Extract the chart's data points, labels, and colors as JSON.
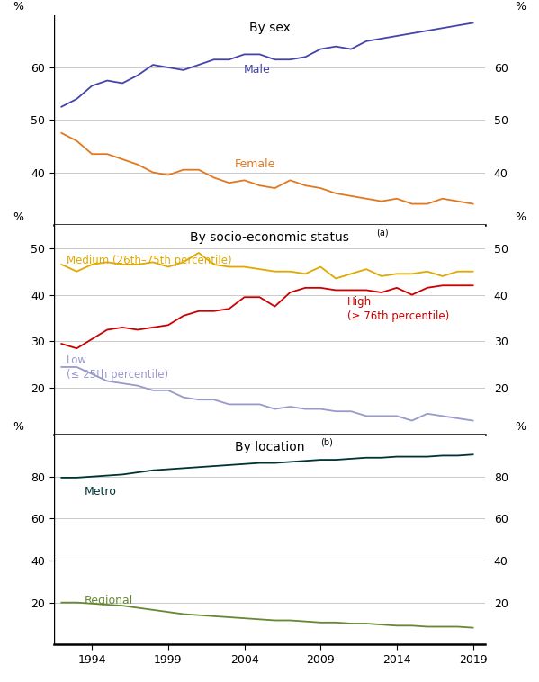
{
  "years": [
    1992,
    1993,
    1994,
    1995,
    1996,
    1997,
    1998,
    1999,
    2000,
    2001,
    2002,
    2003,
    2004,
    2005,
    2006,
    2007,
    2008,
    2009,
    2010,
    2011,
    2012,
    2013,
    2014,
    2015,
    2016,
    2017,
    2018,
    2019
  ],
  "male": [
    52.5,
    54.0,
    56.5,
    57.5,
    57.0,
    58.5,
    60.5,
    60.0,
    59.5,
    60.5,
    61.5,
    61.5,
    62.5,
    62.5,
    61.5,
    61.5,
    62.0,
    63.5,
    64.0,
    63.5,
    65.0,
    65.5,
    66.0,
    66.5,
    67.0,
    67.5,
    68.0,
    68.5
  ],
  "female": [
    47.5,
    46.0,
    43.5,
    43.5,
    42.5,
    41.5,
    40.0,
    39.5,
    40.5,
    40.5,
    39.0,
    38.0,
    38.5,
    37.5,
    37.0,
    38.5,
    37.5,
    37.0,
    36.0,
    35.5,
    35.0,
    34.5,
    35.0,
    34.0,
    34.0,
    35.0,
    34.5,
    34.0
  ],
  "medium": [
    46.5,
    45.0,
    46.5,
    47.0,
    46.5,
    46.5,
    47.0,
    46.0,
    47.0,
    49.0,
    46.5,
    46.0,
    46.0,
    45.5,
    45.0,
    45.0,
    44.5,
    46.0,
    43.5,
    44.5,
    45.5,
    44.0,
    44.5,
    44.5,
    45.0,
    44.0,
    45.0,
    45.0
  ],
  "high": [
    29.5,
    28.5,
    30.5,
    32.5,
    33.0,
    32.5,
    33.0,
    33.5,
    35.5,
    36.5,
    36.5,
    37.0,
    39.5,
    39.5,
    37.5,
    40.5,
    41.5,
    41.5,
    41.0,
    41.0,
    41.0,
    40.5,
    41.5,
    40.0,
    41.5,
    42.0,
    42.0,
    42.0
  ],
  "low": [
    24.5,
    24.5,
    23.0,
    21.5,
    21.0,
    20.5,
    19.5,
    19.5,
    18.0,
    17.5,
    17.5,
    16.5,
    16.5,
    16.5,
    15.5,
    16.0,
    15.5,
    15.5,
    15.0,
    15.0,
    14.0,
    14.0,
    14.0,
    13.0,
    14.5,
    14.0,
    13.5,
    13.0
  ],
  "metro": [
    79.5,
    79.5,
    80.0,
    80.5,
    81.0,
    82.0,
    83.0,
    83.5,
    84.0,
    84.5,
    85.0,
    85.5,
    86.0,
    86.5,
    86.5,
    87.0,
    87.5,
    88.0,
    88.0,
    88.5,
    89.0,
    89.0,
    89.5,
    89.5,
    89.5,
    90.0,
    90.0,
    90.5
  ],
  "regional": [
    20.0,
    20.0,
    19.5,
    19.0,
    18.5,
    17.5,
    16.5,
    15.5,
    14.5,
    14.0,
    13.5,
    13.0,
    12.5,
    12.0,
    11.5,
    11.5,
    11.0,
    10.5,
    10.5,
    10.0,
    10.0,
    9.5,
    9.0,
    9.0,
    8.5,
    8.5,
    8.5,
    8.0
  ],
  "male_color": "#4444aa",
  "female_color": "#e07820",
  "medium_color": "#e0a800",
  "high_color": "#cc0000",
  "low_color": "#9999cc",
  "metro_color": "#003333",
  "regional_color": "#668833",
  "xticks": [
    1994,
    1999,
    2004,
    2009,
    2014,
    2019
  ],
  "xlim": [
    1991.5,
    2019.8
  ],
  "p1_ylim": [
    30,
    70
  ],
  "p1_yticks": [
    40,
    50,
    60
  ],
  "p2_ylim": [
    10,
    55
  ],
  "p2_yticks": [
    20,
    30,
    40,
    50
  ],
  "p3_ylim": [
    0,
    100
  ],
  "p3_yticks": [
    20,
    40,
    60,
    80
  ]
}
